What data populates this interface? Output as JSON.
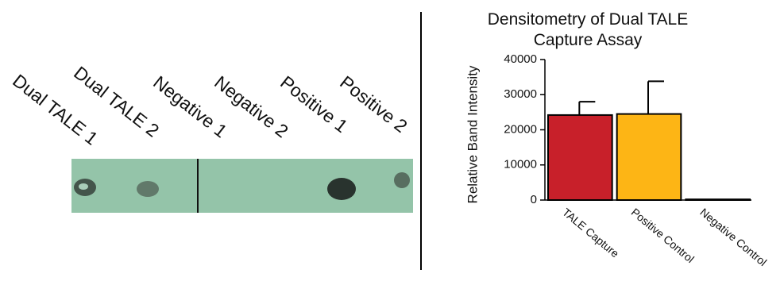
{
  "blot_labels": [
    "Dual TALE 1",
    "Dual TALE 2",
    "Negative 1",
    "Negative 2",
    "Positive 1",
    "Positive 2"
  ],
  "chart_data": {
    "type": "bar",
    "title": "Densitometry of Dual TALE Capture Assay",
    "y_label": "Relative Band Intensity",
    "categories": [
      "TALE Capture",
      "Positive Control",
      "Negative Control"
    ],
    "values": [
      24200,
      24500,
      200
    ],
    "errors": [
      3800,
      9300,
      0
    ],
    "colors": [
      "#c8202a",
      "#fdb515",
      "#ffffff"
    ],
    "ylim": [
      0,
      40000
    ],
    "yticks": [
      0,
      10000,
      20000,
      30000,
      40000
    ]
  }
}
